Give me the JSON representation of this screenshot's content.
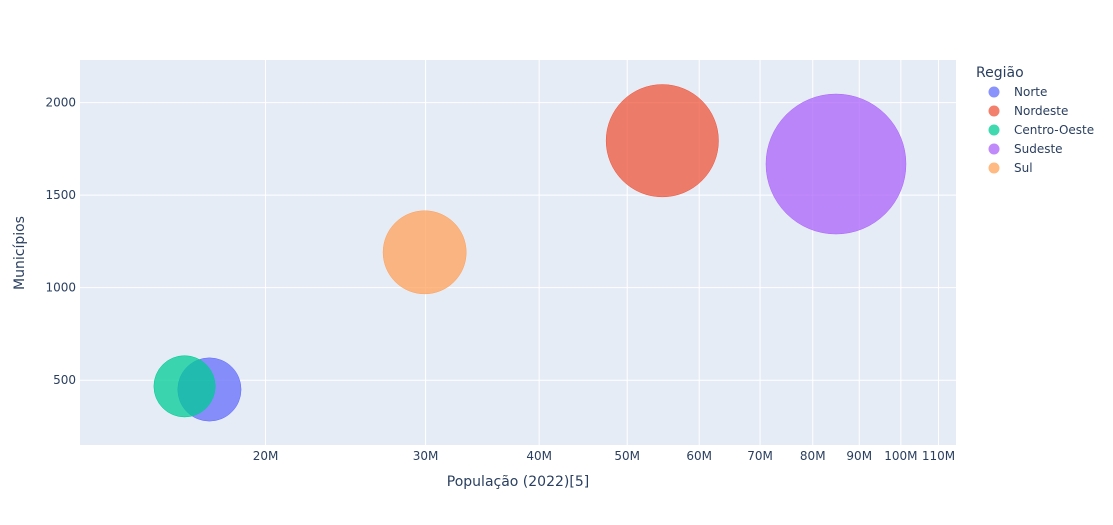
{
  "chart_data": {
    "type": "scatter",
    "xlabel": "População (2022)[5]",
    "ylabel": "Municípios",
    "xscale": "log",
    "xlim": [
      12500000,
      115000000
    ],
    "ylim": [
      150,
      2230
    ],
    "grid": true,
    "x_ticks": [
      {
        "value": 20000000,
        "label": "20M"
      },
      {
        "value": 30000000,
        "label": "30M"
      },
      {
        "value": 40000000,
        "label": "40M"
      },
      {
        "value": 50000000,
        "label": "50M"
      },
      {
        "value": 60000000,
        "label": "60M"
      },
      {
        "value": 70000000,
        "label": "70M"
      },
      {
        "value": 80000000,
        "label": "80M"
      },
      {
        "value": 90000000,
        "label": "90M"
      },
      {
        "value": 100000000,
        "label": "100M"
      },
      {
        "value": 110000000,
        "label": "110M"
      }
    ],
    "y_ticks": [
      {
        "value": 500,
        "label": "500"
      },
      {
        "value": 1000,
        "label": "1000"
      },
      {
        "value": 1500,
        "label": "1500"
      },
      {
        "value": 2000,
        "label": "2000"
      }
    ],
    "legend": {
      "title": "Região",
      "position": "right"
    },
    "series": [
      {
        "name": "Norte",
        "x": 17350000,
        "y": 450,
        "color": "#636efa"
      },
      {
        "name": "Nordeste",
        "x": 54650000,
        "y": 1794,
        "color": "#ef553b"
      },
      {
        "name": "Centro-Oeste",
        "x": 16290000,
        "y": 467,
        "color": "#00cc96"
      },
      {
        "name": "Sudeste",
        "x": 84850000,
        "y": 1668,
        "color": "#ab63fa"
      },
      {
        "name": "Sul",
        "x": 29930000,
        "y": 1191,
        "color": "#ffa15a"
      }
    ]
  }
}
